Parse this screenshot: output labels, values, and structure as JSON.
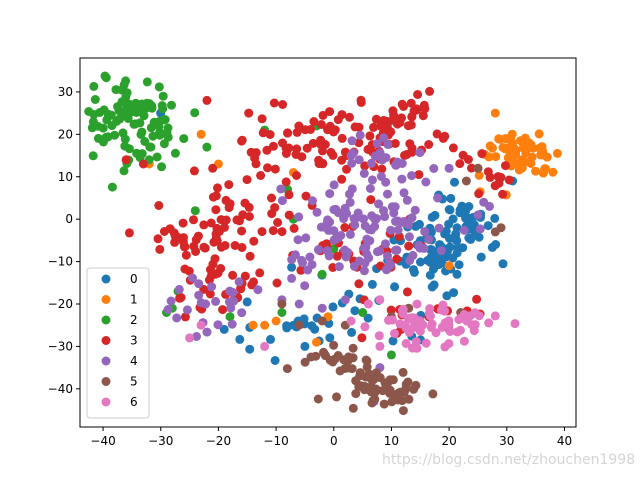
{
  "chart_data": {
    "type": "scatter",
    "title": "",
    "xlabel": "",
    "ylabel": "",
    "xlim": [
      -44,
      42
    ],
    "ylim": [
      -49,
      38
    ],
    "xticks": [
      -40,
      -30,
      -20,
      -10,
      0,
      10,
      20,
      30,
      40
    ],
    "yticks": [
      -40,
      -30,
      -20,
      -10,
      0,
      10,
      20,
      30
    ],
    "grid": false,
    "legend_position": "lower-left",
    "series": [
      {
        "name": "0",
        "color": "#1f77b4",
        "clusters": [
          {
            "cx": 18,
            "cy": -8,
            "sx": 4,
            "sy": 4,
            "n": 70
          },
          {
            "cx": 22,
            "cy": 2,
            "sx": 3,
            "sy": 3,
            "n": 30
          },
          {
            "cx": -3,
            "cy": -25,
            "sx": 6,
            "sy": 3,
            "n": 25
          },
          {
            "cx": 10,
            "cy": -18,
            "sx": 8,
            "sy": 5,
            "n": 12
          }
        ],
        "points": [
          [
            -30,
            25
          ],
          [
            31,
            9
          ],
          [
            -19,
            -26
          ],
          [
            -5,
            -30
          ]
        ]
      },
      {
        "name": "1",
        "color": "#ff7f0e",
        "clusters": [
          {
            "cx": 32,
            "cy": 15,
            "sx": 3.5,
            "sy": 3,
            "n": 60
          }
        ],
        "points": [
          [
            -12,
            -25
          ],
          [
            -14,
            -25
          ],
          [
            -10,
            -24
          ],
          [
            -32,
            13
          ],
          [
            -23,
            20
          ],
          [
            20,
            -11
          ],
          [
            -20,
            13
          ],
          [
            28,
            25
          ],
          [
            -7,
            11
          ],
          [
            -3,
            -29
          ],
          [
            -1,
            -23
          ]
        ]
      },
      {
        "name": "2",
        "color": "#2ca02c",
        "clusters": [
          {
            "cx": -35,
            "cy": 23,
            "sx": 4,
            "sy": 5,
            "n": 100
          }
        ],
        "points": [
          [
            -28,
            -21
          ],
          [
            -29,
            -22
          ],
          [
            -22,
            17
          ],
          [
            -27,
            -17
          ],
          [
            -18,
            -23
          ],
          [
            -9,
            -22
          ],
          [
            -8,
            7
          ],
          [
            -3,
            22
          ],
          [
            -26,
            19
          ],
          [
            -12,
            21
          ],
          [
            -2,
            -13
          ],
          [
            0,
            -7
          ],
          [
            5,
            -22
          ],
          [
            25,
            12
          ],
          [
            -24,
            2
          ],
          [
            -32,
            14
          ],
          [
            -7,
            0
          ],
          [
            10,
            -32
          ]
        ]
      },
      {
        "name": "3",
        "color": "#d62728",
        "clusters": [
          {
            "cx": 0,
            "cy": 18,
            "sx": 9,
            "sy": 4,
            "n": 100
          },
          {
            "cx": -17,
            "cy": 3,
            "sx": 6,
            "sy": 6,
            "n": 45
          },
          {
            "cx": -25,
            "cy": -5,
            "sx": 3,
            "sy": 2.5,
            "n": 25
          },
          {
            "cx": -20,
            "cy": -16,
            "sx": 4,
            "sy": 5,
            "n": 35
          },
          {
            "cx": 12,
            "cy": 25,
            "sx": 2.5,
            "sy": 2,
            "n": 25
          },
          {
            "cx": 26,
            "cy": 11,
            "sx": 3,
            "sy": 3,
            "n": 15
          },
          {
            "cx": 2,
            "cy": -5,
            "sx": 6,
            "sy": 5,
            "n": 35
          },
          {
            "cx": 15,
            "cy": -22,
            "sx": 5,
            "sy": 3,
            "n": 15
          }
        ],
        "points": [
          [
            -22,
            28
          ],
          [
            -33,
            13
          ],
          [
            -21,
            12
          ],
          [
            -36,
            14
          ]
        ]
      },
      {
        "name": "4",
        "color": "#9467bd",
        "clusters": [
          {
            "cx": 3,
            "cy": -2,
            "sx": 7,
            "sy": 6,
            "n": 90
          },
          {
            "cx": 8,
            "cy": 12,
            "sx": 4,
            "sy": 4,
            "n": 30
          },
          {
            "cx": -22,
            "cy": -20,
            "sx": 3,
            "sy": 4,
            "n": 25
          },
          {
            "cx": 13,
            "cy": -5,
            "sx": 4,
            "sy": 4,
            "n": 20
          }
        ],
        "points": [
          [
            -9,
            -19
          ],
          [
            -6,
            -20
          ],
          [
            -2,
            -21
          ],
          [
            2,
            -19
          ],
          [
            7,
            -43
          ],
          [
            8,
            -35
          ],
          [
            18,
            5
          ],
          [
            20,
            12
          ],
          [
            25,
            1
          ],
          [
            26,
            4
          ],
          [
            27,
            3
          ],
          [
            3,
            15
          ]
        ]
      },
      {
        "name": "5",
        "color": "#8c564b",
        "clusters": [
          {
            "cx": 8,
            "cy": -40,
            "sx": 4,
            "sy": 3,
            "n": 55
          },
          {
            "cx": 0,
            "cy": -33,
            "sx": 3,
            "sy": 2,
            "n": 20
          }
        ],
        "points": [
          [
            -9,
            -20
          ],
          [
            -6,
            -25
          ],
          [
            -2,
            -24
          ],
          [
            2,
            -25
          ],
          [
            20,
            -26
          ],
          [
            22,
            -22
          ],
          [
            10,
            -23
          ],
          [
            13,
            -21
          ],
          [
            28,
            -3
          ],
          [
            29,
            -2
          ],
          [
            23,
            9
          ],
          [
            25,
            12
          ]
        ]
      },
      {
        "name": "6",
        "color": "#e377c2",
        "clusters": [
          {
            "cx": 17,
            "cy": -25,
            "sx": 5,
            "sy": 3,
            "n": 60
          }
        ],
        "points": [
          [
            -12,
            -30
          ],
          [
            -25,
            -28
          ],
          [
            -23,
            -25
          ],
          [
            6,
            -20
          ],
          [
            8,
            -19
          ],
          [
            3,
            -24
          ],
          [
            8,
            -30
          ]
        ]
      }
    ]
  },
  "watermark": "https://blog.csdn.net/zhouchen1998"
}
